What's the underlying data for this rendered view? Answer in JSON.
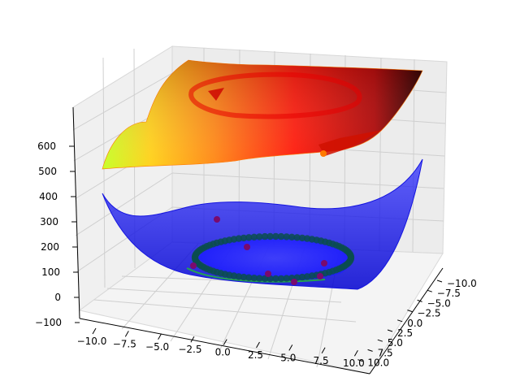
{
  "chart_data": {
    "type": "surface3d",
    "title": "",
    "xlabel": "",
    "ylabel": "",
    "zlabel": "",
    "xlim": [
      -11,
      11
    ],
    "ylim": [
      -11,
      11
    ],
    "zlim": [
      -100,
      700
    ],
    "x_ticks": [
      "−10.0",
      "−7.5",
      "−5.0",
      "−2.5",
      "0.0",
      "2.5",
      "5.0",
      "7.5",
      "10.0"
    ],
    "y_ticks": [
      "−10.0",
      "−7.5",
      "−5.0",
      "−2.5",
      "0.0",
      "2.5",
      "5.0",
      "7.5",
      "10.0"
    ],
    "z_ticks": [
      "−100",
      "0",
      "100",
      "200",
      "300",
      "400",
      "500",
      "600"
    ],
    "grid": true,
    "surfaces": [
      {
        "name": "upper",
        "colormap": "hot-to-yellow",
        "value_range": [
          450,
          660
        ],
        "feature": "circular trough of radius ~6 around the origin"
      },
      {
        "name": "lower",
        "color": "#1a1aff",
        "opacity": 0.7,
        "value_range": [
          -10,
          300
        ],
        "feature": "bowl with a ring of points at radius ~6 near z=0"
      }
    ],
    "ring": {
      "radius": 6,
      "z": 5,
      "color": "#0a4d4d"
    },
    "scatter": {
      "color": "#7a0a6e",
      "points": [
        {
          "x": -2.0,
          "y": -7.0,
          "z": 130
        },
        {
          "x": -0.5,
          "y": -1.5,
          "z": 80
        },
        {
          "x": -6.5,
          "y": -7.5,
          "z": 200
        },
        {
          "x": 2.5,
          "y": 4.0,
          "z": 8
        },
        {
          "x": 7.5,
          "y": 2.5,
          "z": 40
        },
        {
          "x": 6.5,
          "y": 3.0,
          "z": 0
        },
        {
          "x": 4.5,
          "y": 7.5,
          "z": 0
        }
      ]
    }
  }
}
